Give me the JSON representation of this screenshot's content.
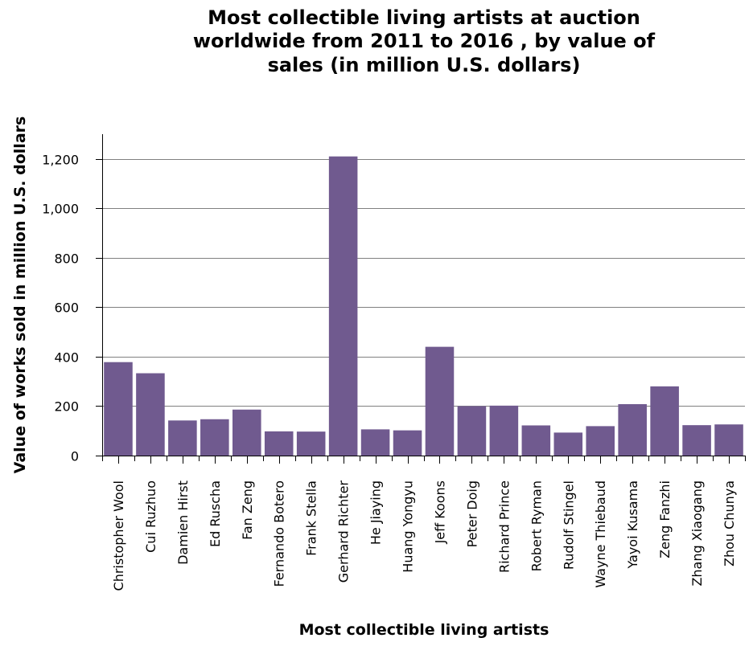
{
  "chart_data": {
    "type": "bar",
    "title_lines": [
      "Most collectible living artists at auction",
      "worldwide from 2011 to 2016 , by value of",
      "sales (in million U.S. dollars)"
    ],
    "xlabel": "Most collectible living artists",
    "ylabel": "Value of works sold in million U.S. dollars",
    "ylim": [
      0,
      1300
    ],
    "yticks": [
      0,
      200,
      400,
      600,
      800,
      1000,
      1200
    ],
    "ytick_labels": [
      "0",
      "200",
      "400",
      "600",
      "800",
      "1,000",
      "1,200"
    ],
    "grid": true,
    "bar_color": "#705a8f",
    "categories": [
      "Christopher Wool",
      "Cui Ruzhuo",
      "Damien Hirst",
      "Ed Ruscha",
      "Fan Zeng",
      "Fernando Botero",
      "Frank Stella",
      "Gerhard Richter",
      "He Jiaying",
      "Huang Yongyu",
      "Jeff Koons",
      "Peter Doig",
      "Richard Prince",
      "Robert Ryman",
      "Rudolf Stingel",
      "Wayne Thiebaud",
      "Yayoi Kusama",
      "Zeng Fanzhi",
      "Zhang Xiaogang",
      "Zhou Chunya"
    ],
    "values": [
      378,
      333,
      142,
      147,
      186,
      98,
      97,
      1210,
      106,
      102,
      440,
      200,
      202,
      122,
      93,
      119,
      208,
      280,
      123,
      126
    ]
  }
}
